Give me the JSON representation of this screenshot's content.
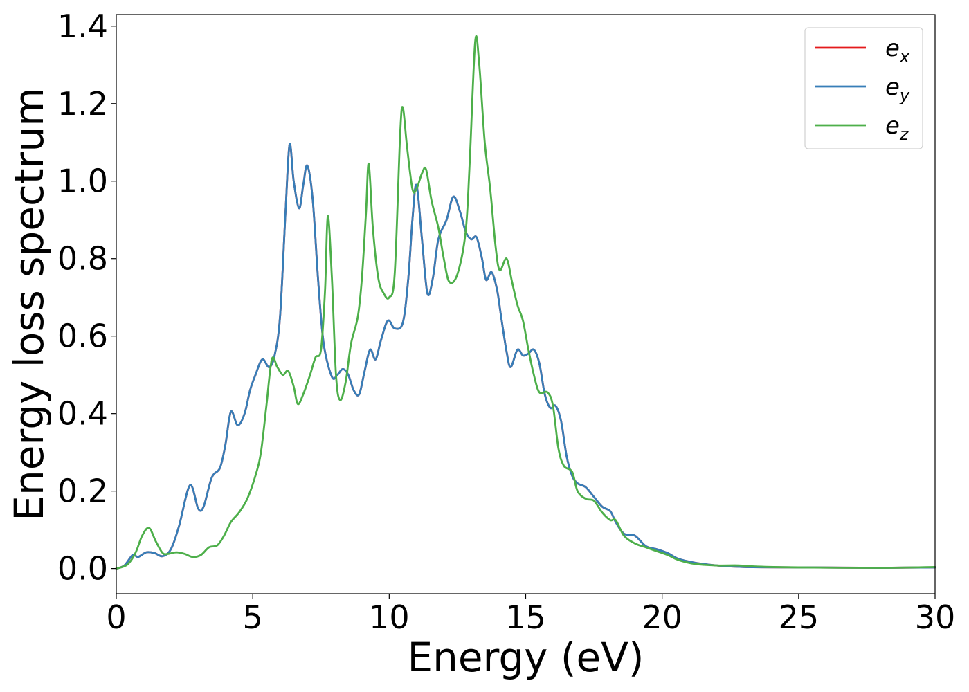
{
  "chart_data": {
    "type": "line",
    "xlabel": "Energy (eV)",
    "ylabel": "Energy loss spectrum",
    "xlim": [
      0,
      30
    ],
    "ylim": [
      -0.065,
      1.43
    ],
    "x_ticks": [
      "0",
      "5",
      "10",
      "15",
      "20",
      "25",
      "30"
    ],
    "y_ticks": [
      "0.0",
      "0.2",
      "0.4",
      "0.6",
      "0.8",
      "1.0",
      "1.2",
      "1.4"
    ],
    "grid": false,
    "legend_position": "top-right",
    "series": [
      {
        "name": "e",
        "subscript": "x",
        "color": "#e41a1c",
        "points": [
          [
            0,
            0.0
          ],
          [
            0.3,
            0.008
          ],
          [
            0.6,
            0.035
          ],
          [
            0.8,
            0.03
          ],
          [
            1.1,
            0.042
          ],
          [
            1.4,
            0.04
          ],
          [
            1.7,
            0.032
          ],
          [
            2.0,
            0.05
          ],
          [
            2.3,
            0.11
          ],
          [
            2.7,
            0.215
          ],
          [
            3.0,
            0.155
          ],
          [
            3.2,
            0.16
          ],
          [
            3.5,
            0.235
          ],
          [
            3.8,
            0.26
          ],
          [
            4.0,
            0.32
          ],
          [
            4.2,
            0.405
          ],
          [
            4.45,
            0.37
          ],
          [
            4.7,
            0.4
          ],
          [
            4.9,
            0.46
          ],
          [
            5.1,
            0.5
          ],
          [
            5.35,
            0.54
          ],
          [
            5.6,
            0.52
          ],
          [
            5.8,
            0.55
          ],
          [
            6.0,
            0.65
          ],
          [
            6.2,
            0.92
          ],
          [
            6.35,
            1.095
          ],
          [
            6.5,
            1.0
          ],
          [
            6.7,
            0.93
          ],
          [
            6.85,
            0.99
          ],
          [
            7.0,
            1.04
          ],
          [
            7.2,
            0.95
          ],
          [
            7.4,
            0.74
          ],
          [
            7.6,
            0.58
          ],
          [
            7.9,
            0.495
          ],
          [
            8.1,
            0.5
          ],
          [
            8.3,
            0.515
          ],
          [
            8.5,
            0.5
          ],
          [
            8.7,
            0.46
          ],
          [
            8.9,
            0.45
          ],
          [
            9.1,
            0.51
          ],
          [
            9.3,
            0.565
          ],
          [
            9.5,
            0.54
          ],
          [
            9.7,
            0.59
          ],
          [
            9.95,
            0.64
          ],
          [
            10.2,
            0.62
          ],
          [
            10.5,
            0.635
          ],
          [
            10.7,
            0.75
          ],
          [
            10.85,
            0.9
          ],
          [
            11.0,
            0.99
          ],
          [
            11.2,
            0.85
          ],
          [
            11.4,
            0.71
          ],
          [
            11.6,
            0.75
          ],
          [
            11.8,
            0.85
          ],
          [
            12.1,
            0.9
          ],
          [
            12.35,
            0.96
          ],
          [
            12.6,
            0.92
          ],
          [
            12.8,
            0.87
          ],
          [
            13.0,
            0.85
          ],
          [
            13.2,
            0.855
          ],
          [
            13.4,
            0.8
          ],
          [
            13.55,
            0.745
          ],
          [
            13.75,
            0.765
          ],
          [
            13.95,
            0.72
          ],
          [
            14.1,
            0.65
          ],
          [
            14.3,
            0.56
          ],
          [
            14.45,
            0.52
          ],
          [
            14.7,
            0.565
          ],
          [
            14.9,
            0.55
          ],
          [
            15.1,
            0.555
          ],
          [
            15.3,
            0.565
          ],
          [
            15.5,
            0.53
          ],
          [
            15.7,
            0.45
          ],
          [
            15.9,
            0.415
          ],
          [
            16.1,
            0.42
          ],
          [
            16.3,
            0.38
          ],
          [
            16.5,
            0.29
          ],
          [
            16.7,
            0.24
          ],
          [
            16.9,
            0.22
          ],
          [
            17.2,
            0.21
          ],
          [
            17.5,
            0.185
          ],
          [
            17.8,
            0.16
          ],
          [
            18.1,
            0.148
          ],
          [
            18.3,
            0.12
          ],
          [
            18.6,
            0.09
          ],
          [
            19.0,
            0.085
          ],
          [
            19.4,
            0.058
          ],
          [
            19.8,
            0.05
          ],
          [
            20.2,
            0.04
          ],
          [
            20.6,
            0.025
          ],
          [
            21.2,
            0.015
          ],
          [
            22.0,
            0.008
          ],
          [
            23.0,
            0.004
          ],
          [
            25.0,
            0.003
          ],
          [
            28.0,
            0.002
          ],
          [
            30.0,
            0.003
          ]
        ]
      },
      {
        "name": "e",
        "subscript": "y",
        "color": "#377eb8",
        "points": [
          [
            0,
            0.0
          ],
          [
            0.3,
            0.008
          ],
          [
            0.6,
            0.035
          ],
          [
            0.8,
            0.03
          ],
          [
            1.1,
            0.042
          ],
          [
            1.4,
            0.04
          ],
          [
            1.7,
            0.032
          ],
          [
            2.0,
            0.05
          ],
          [
            2.3,
            0.11
          ],
          [
            2.7,
            0.215
          ],
          [
            3.0,
            0.155
          ],
          [
            3.2,
            0.16
          ],
          [
            3.5,
            0.235
          ],
          [
            3.8,
            0.26
          ],
          [
            4.0,
            0.32
          ],
          [
            4.2,
            0.405
          ],
          [
            4.45,
            0.37
          ],
          [
            4.7,
            0.4
          ],
          [
            4.9,
            0.46
          ],
          [
            5.1,
            0.5
          ],
          [
            5.35,
            0.54
          ],
          [
            5.6,
            0.52
          ],
          [
            5.8,
            0.55
          ],
          [
            6.0,
            0.65
          ],
          [
            6.2,
            0.92
          ],
          [
            6.35,
            1.095
          ],
          [
            6.5,
            1.0
          ],
          [
            6.7,
            0.93
          ],
          [
            6.85,
            0.99
          ],
          [
            7.0,
            1.04
          ],
          [
            7.2,
            0.95
          ],
          [
            7.4,
            0.74
          ],
          [
            7.6,
            0.58
          ],
          [
            7.9,
            0.495
          ],
          [
            8.1,
            0.5
          ],
          [
            8.3,
            0.515
          ],
          [
            8.5,
            0.5
          ],
          [
            8.7,
            0.46
          ],
          [
            8.9,
            0.45
          ],
          [
            9.1,
            0.51
          ],
          [
            9.3,
            0.565
          ],
          [
            9.5,
            0.54
          ],
          [
            9.7,
            0.59
          ],
          [
            9.95,
            0.64
          ],
          [
            10.2,
            0.62
          ],
          [
            10.5,
            0.635
          ],
          [
            10.7,
            0.75
          ],
          [
            10.85,
            0.9
          ],
          [
            11.0,
            0.99
          ],
          [
            11.2,
            0.85
          ],
          [
            11.4,
            0.71
          ],
          [
            11.6,
            0.75
          ],
          [
            11.8,
            0.85
          ],
          [
            12.1,
            0.9
          ],
          [
            12.35,
            0.96
          ],
          [
            12.6,
            0.92
          ],
          [
            12.8,
            0.87
          ],
          [
            13.0,
            0.85
          ],
          [
            13.2,
            0.855
          ],
          [
            13.4,
            0.8
          ],
          [
            13.55,
            0.745
          ],
          [
            13.75,
            0.765
          ],
          [
            13.95,
            0.72
          ],
          [
            14.1,
            0.65
          ],
          [
            14.3,
            0.56
          ],
          [
            14.45,
            0.52
          ],
          [
            14.7,
            0.565
          ],
          [
            14.9,
            0.55
          ],
          [
            15.1,
            0.555
          ],
          [
            15.3,
            0.565
          ],
          [
            15.5,
            0.53
          ],
          [
            15.7,
            0.45
          ],
          [
            15.9,
            0.415
          ],
          [
            16.1,
            0.42
          ],
          [
            16.3,
            0.38
          ],
          [
            16.5,
            0.29
          ],
          [
            16.7,
            0.24
          ],
          [
            16.9,
            0.22
          ],
          [
            17.2,
            0.21
          ],
          [
            17.5,
            0.185
          ],
          [
            17.8,
            0.16
          ],
          [
            18.1,
            0.148
          ],
          [
            18.3,
            0.12
          ],
          [
            18.6,
            0.09
          ],
          [
            19.0,
            0.085
          ],
          [
            19.4,
            0.058
          ],
          [
            19.8,
            0.05
          ],
          [
            20.2,
            0.04
          ],
          [
            20.6,
            0.025
          ],
          [
            21.2,
            0.015
          ],
          [
            22.0,
            0.008
          ],
          [
            23.0,
            0.004
          ],
          [
            25.0,
            0.003
          ],
          [
            28.0,
            0.002
          ],
          [
            30.0,
            0.003
          ]
        ]
      },
      {
        "name": "e",
        "subscript": "z",
        "color": "#4daf4a",
        "points": [
          [
            0,
            0.0
          ],
          [
            0.4,
            0.01
          ],
          [
            0.7,
            0.04
          ],
          [
            0.95,
            0.085
          ],
          [
            1.2,
            0.105
          ],
          [
            1.45,
            0.07
          ],
          [
            1.7,
            0.04
          ],
          [
            1.9,
            0.038
          ],
          [
            2.2,
            0.042
          ],
          [
            2.5,
            0.038
          ],
          [
            2.8,
            0.03
          ],
          [
            3.1,
            0.035
          ],
          [
            3.4,
            0.055
          ],
          [
            3.7,
            0.06
          ],
          [
            3.95,
            0.085
          ],
          [
            4.2,
            0.12
          ],
          [
            4.5,
            0.145
          ],
          [
            4.8,
            0.18
          ],
          [
            5.1,
            0.24
          ],
          [
            5.3,
            0.3
          ],
          [
            5.5,
            0.42
          ],
          [
            5.7,
            0.54
          ],
          [
            5.9,
            0.52
          ],
          [
            6.1,
            0.5
          ],
          [
            6.3,
            0.51
          ],
          [
            6.5,
            0.47
          ],
          [
            6.65,
            0.425
          ],
          [
            6.85,
            0.45
          ],
          [
            7.1,
            0.5
          ],
          [
            7.3,
            0.545
          ],
          [
            7.5,
            0.565
          ],
          [
            7.65,
            0.72
          ],
          [
            7.75,
            0.91
          ],
          [
            7.9,
            0.75
          ],
          [
            8.05,
            0.5
          ],
          [
            8.2,
            0.435
          ],
          [
            8.4,
            0.48
          ],
          [
            8.6,
            0.58
          ],
          [
            8.85,
            0.65
          ],
          [
            9.0,
            0.75
          ],
          [
            9.15,
            0.92
          ],
          [
            9.25,
            1.045
          ],
          [
            9.4,
            0.88
          ],
          [
            9.6,
            0.75
          ],
          [
            9.8,
            0.71
          ],
          [
            10.0,
            0.7
          ],
          [
            10.2,
            0.76
          ],
          [
            10.4,
            1.12
          ],
          [
            10.5,
            1.19
          ],
          [
            10.65,
            1.09
          ],
          [
            10.85,
            0.98
          ],
          [
            11.0,
            0.98
          ],
          [
            11.2,
            1.02
          ],
          [
            11.35,
            1.03
          ],
          [
            11.55,
            0.95
          ],
          [
            11.8,
            0.88
          ],
          [
            12.0,
            0.8
          ],
          [
            12.2,
            0.74
          ],
          [
            12.5,
            0.76
          ],
          [
            12.8,
            0.87
          ],
          [
            12.95,
            1.05
          ],
          [
            13.15,
            1.36
          ],
          [
            13.3,
            1.3
          ],
          [
            13.5,
            1.1
          ],
          [
            13.7,
            0.98
          ],
          [
            13.9,
            0.83
          ],
          [
            14.05,
            0.77
          ],
          [
            14.3,
            0.8
          ],
          [
            14.5,
            0.74
          ],
          [
            14.7,
            0.68
          ],
          [
            14.9,
            0.64
          ],
          [
            15.1,
            0.565
          ],
          [
            15.3,
            0.5
          ],
          [
            15.5,
            0.455
          ],
          [
            15.8,
            0.455
          ],
          [
            16.0,
            0.42
          ],
          [
            16.2,
            0.31
          ],
          [
            16.4,
            0.265
          ],
          [
            16.7,
            0.25
          ],
          [
            16.9,
            0.2
          ],
          [
            17.2,
            0.18
          ],
          [
            17.5,
            0.175
          ],
          [
            17.8,
            0.145
          ],
          [
            18.1,
            0.125
          ],
          [
            18.3,
            0.125
          ],
          [
            18.6,
            0.085
          ],
          [
            19.0,
            0.065
          ],
          [
            19.4,
            0.055
          ],
          [
            19.8,
            0.045
          ],
          [
            20.2,
            0.035
          ],
          [
            20.6,
            0.022
          ],
          [
            21.2,
            0.012
          ],
          [
            22.0,
            0.008
          ],
          [
            22.8,
            0.008
          ],
          [
            23.5,
            0.005
          ],
          [
            25.0,
            0.003
          ],
          [
            28.0,
            0.002
          ],
          [
            30.0,
            0.004
          ]
        ]
      }
    ]
  }
}
